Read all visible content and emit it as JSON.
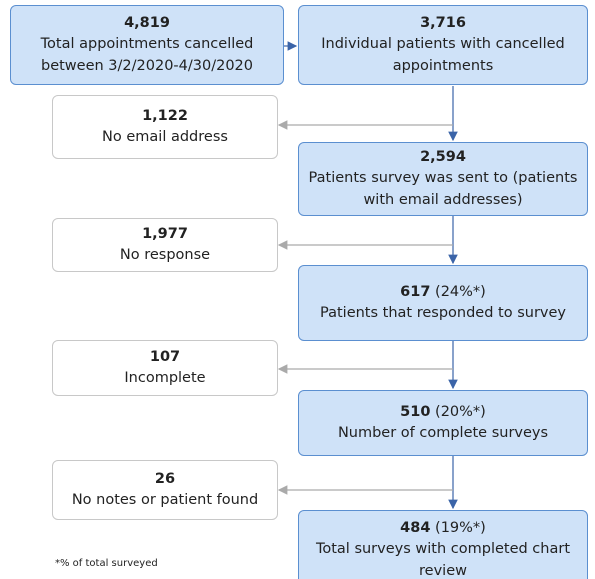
{
  "nodes": [
    {
      "number": "4,819",
      "label": "Total appointments cancelled between 3/2/2020-4/30/2020"
    },
    {
      "number": "3,716",
      "label": "Individual patients with cancelled appointments"
    },
    {
      "number": "1,122",
      "label": "No email address"
    },
    {
      "number": "2,594",
      "label": "Patients survey was sent to (patients with email addresses)"
    },
    {
      "number": "1,977",
      "label": "No response"
    },
    {
      "number": "617",
      "percent": "(24%*)",
      "label": "Patients that responded to survey"
    },
    {
      "number": "107",
      "label": "Incomplete"
    },
    {
      "number": "510",
      "percent": "(20%*)",
      "label": "Number of complete surveys"
    },
    {
      "number": "26",
      "label": "No notes or patient found"
    },
    {
      "number": "484",
      "percent": "(19%*)",
      "label": "Total surveys with completed chart review"
    }
  ],
  "footnote": "*% of total surveyed"
}
